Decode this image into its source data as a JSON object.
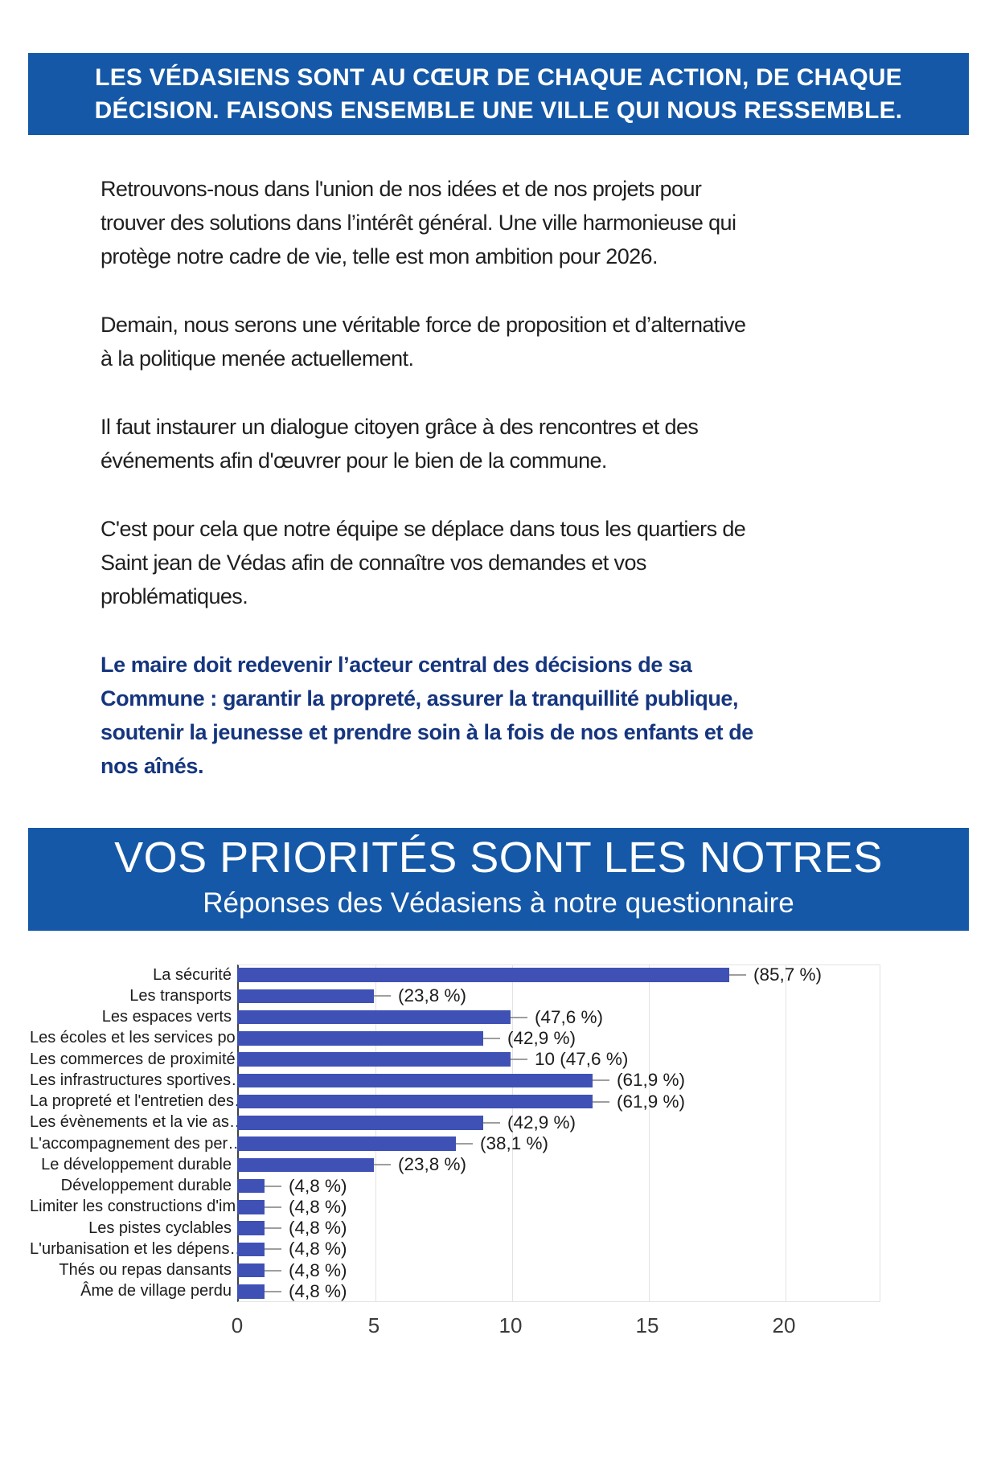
{
  "banner_top": {
    "text": "LES VÉDASIENS SONT AU CŒUR DE CHAQUE ACTION, DE CHAQUE\nDÉCISION. FAISONS ENSEMBLE UNE VILLE QUI NOUS RESSEMBLE."
  },
  "body": {
    "paragraphs": [
      "Retrouvons-nous dans l'union de nos idées et de nos projets pour\ntrouver des solutions dans l’intérêt général. Une ville harmonieuse qui\nprotège notre cadre de vie, telle est mon ambition pour 2026.",
      "Demain, nous serons une véritable force de proposition et d’alternative\nà la politique menée actuellement.",
      "Il faut instaurer un dialogue citoyen grâce à des rencontres et des\névénements afin d'œuvrer pour le bien de la commune.",
      "C'est pour cela que notre équipe se déplace dans tous les quartiers de\nSaint jean de Védas afin de connaître vos demandes et vos\nproblématiques."
    ],
    "highlight": "Le maire doit redevenir l’acteur central des décisions de sa\nCommune : garantir la propreté, assurer la tranquillité publique,\nsoutenir la jeunesse et prendre soin à la fois de nos enfants et de\nnos aînés."
  },
  "section": {
    "title": "VOS PRIORITÉS SONT LES NOTRES",
    "subtitle": "Réponses des Védasiens à notre questionnaire"
  },
  "chart_data": {
    "type": "bar",
    "orientation": "horizontal",
    "title": "Réponses des Védasiens à notre questionnaire",
    "categories": [
      "La sécurité",
      "Les transports",
      "Les espaces verts",
      "Les écoles et les services po…",
      "Les commerces de proximité",
      "Les infrastructures sportives…",
      "La propreté et l'entretien des…",
      "Les évènements et la vie as…",
      "L'accompagnement des per…",
      "Le développement durable",
      "Développement durable",
      "Limiter les constructions d'im…",
      "Les pistes cyclables",
      "L'urbanisation et les dépens…",
      "Thés ou repas dansants",
      "Âme de village perdu"
    ],
    "values": [
      18,
      5,
      10,
      9,
      10,
      13,
      13,
      9,
      8,
      5,
      1,
      1,
      1,
      1,
      1,
      1
    ],
    "value_labels": [
      "(85,7 %)",
      "(23,8 %)",
      "(47,6 %)",
      "(42,9 %)",
      "10 (47,6 %)",
      "(61,9 %)",
      "(61,9 %)",
      "(42,9 %)",
      "(38,1 %)",
      "(23,8 %)",
      "(4,8 %)",
      "(4,8 %)",
      "(4,8 %)",
      "(4,8 %)",
      "(4,8 %)",
      "(4,8 %)"
    ],
    "xlabel": "",
    "ylabel": "",
    "xlim": [
      0,
      20
    ],
    "xticks": [
      0,
      5,
      10,
      15,
      20
    ],
    "grid": true,
    "legend": false
  },
  "colors": {
    "banner-blue": "#1558A7",
    "highlight-navy": "#15357E",
    "bar-blue": "#3F51B5",
    "grid-gray": "#e3e3e3",
    "axis-dark": "#424242",
    "whisker-gray": "#9e9e9e",
    "text-dark": "#212121"
  }
}
